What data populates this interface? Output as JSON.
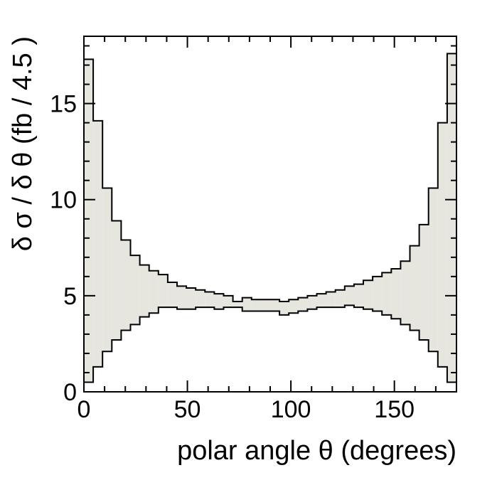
{
  "chart_data": {
    "type": "area",
    "xlabel": "polar angle θ (degrees)",
    "ylabel": "δ σ / δ θ (fb / 4.5 )",
    "xlim": [
      0,
      180
    ],
    "ylim": [
      0,
      18.5
    ],
    "x_ticks": [
      0,
      50,
      100,
      150
    ],
    "y_ticks": [
      0,
      5,
      10,
      15
    ],
    "x_tick_labels": [
      "0",
      "50",
      "100",
      "150"
    ],
    "y_tick_labels": [
      "0",
      "5",
      "10",
      "15"
    ],
    "grid": false,
    "legend": "none",
    "bin_width": 4.5,
    "bin_edges": [
      0,
      4.5,
      9,
      13.5,
      18,
      22.5,
      27,
      31.5,
      36,
      40.5,
      45,
      49.5,
      54,
      58.5,
      63,
      67.5,
      72,
      76.5,
      81,
      85.5,
      90,
      94.5,
      99,
      103.5,
      108,
      112.5,
      117,
      121.5,
      126,
      130.5,
      135,
      139.5,
      144,
      148.5,
      153,
      157.5,
      162,
      166.5,
      171,
      175.5,
      180
    ],
    "series": [
      {
        "role": "upper band edge",
        "values": [
          17.3,
          14.1,
          10.6,
          8.9,
          7.9,
          7.1,
          6.6,
          6.3,
          6.1,
          5.7,
          5.5,
          5.4,
          5.3,
          5.2,
          5.1,
          5.0,
          4.7,
          4.9,
          4.8,
          4.8,
          4.8,
          4.7,
          4.8,
          4.9,
          5.0,
          5.1,
          5.2,
          5.3,
          5.5,
          5.6,
          5.8,
          6.0,
          6.2,
          6.4,
          6.8,
          7.6,
          8.7,
          10.6,
          14.0,
          17.6
        ]
      },
      {
        "role": "lower band edge",
        "values": [
          0.5,
          1.3,
          2.1,
          2.7,
          3.2,
          3.5,
          3.9,
          4.1,
          4.4,
          4.4,
          4.3,
          4.3,
          4.4,
          4.4,
          4.3,
          4.4,
          4.4,
          4.2,
          4.2,
          4.2,
          4.2,
          4.0,
          4.1,
          4.2,
          4.3,
          4.4,
          4.4,
          4.4,
          4.5,
          4.4,
          4.3,
          4.2,
          4.0,
          3.8,
          3.5,
          3.2,
          2.7,
          2.1,
          1.3,
          0.5
        ]
      }
    ],
    "colors": {
      "band_fill": "#e6e6df",
      "line": "#000000",
      "axis": "#000000"
    }
  }
}
